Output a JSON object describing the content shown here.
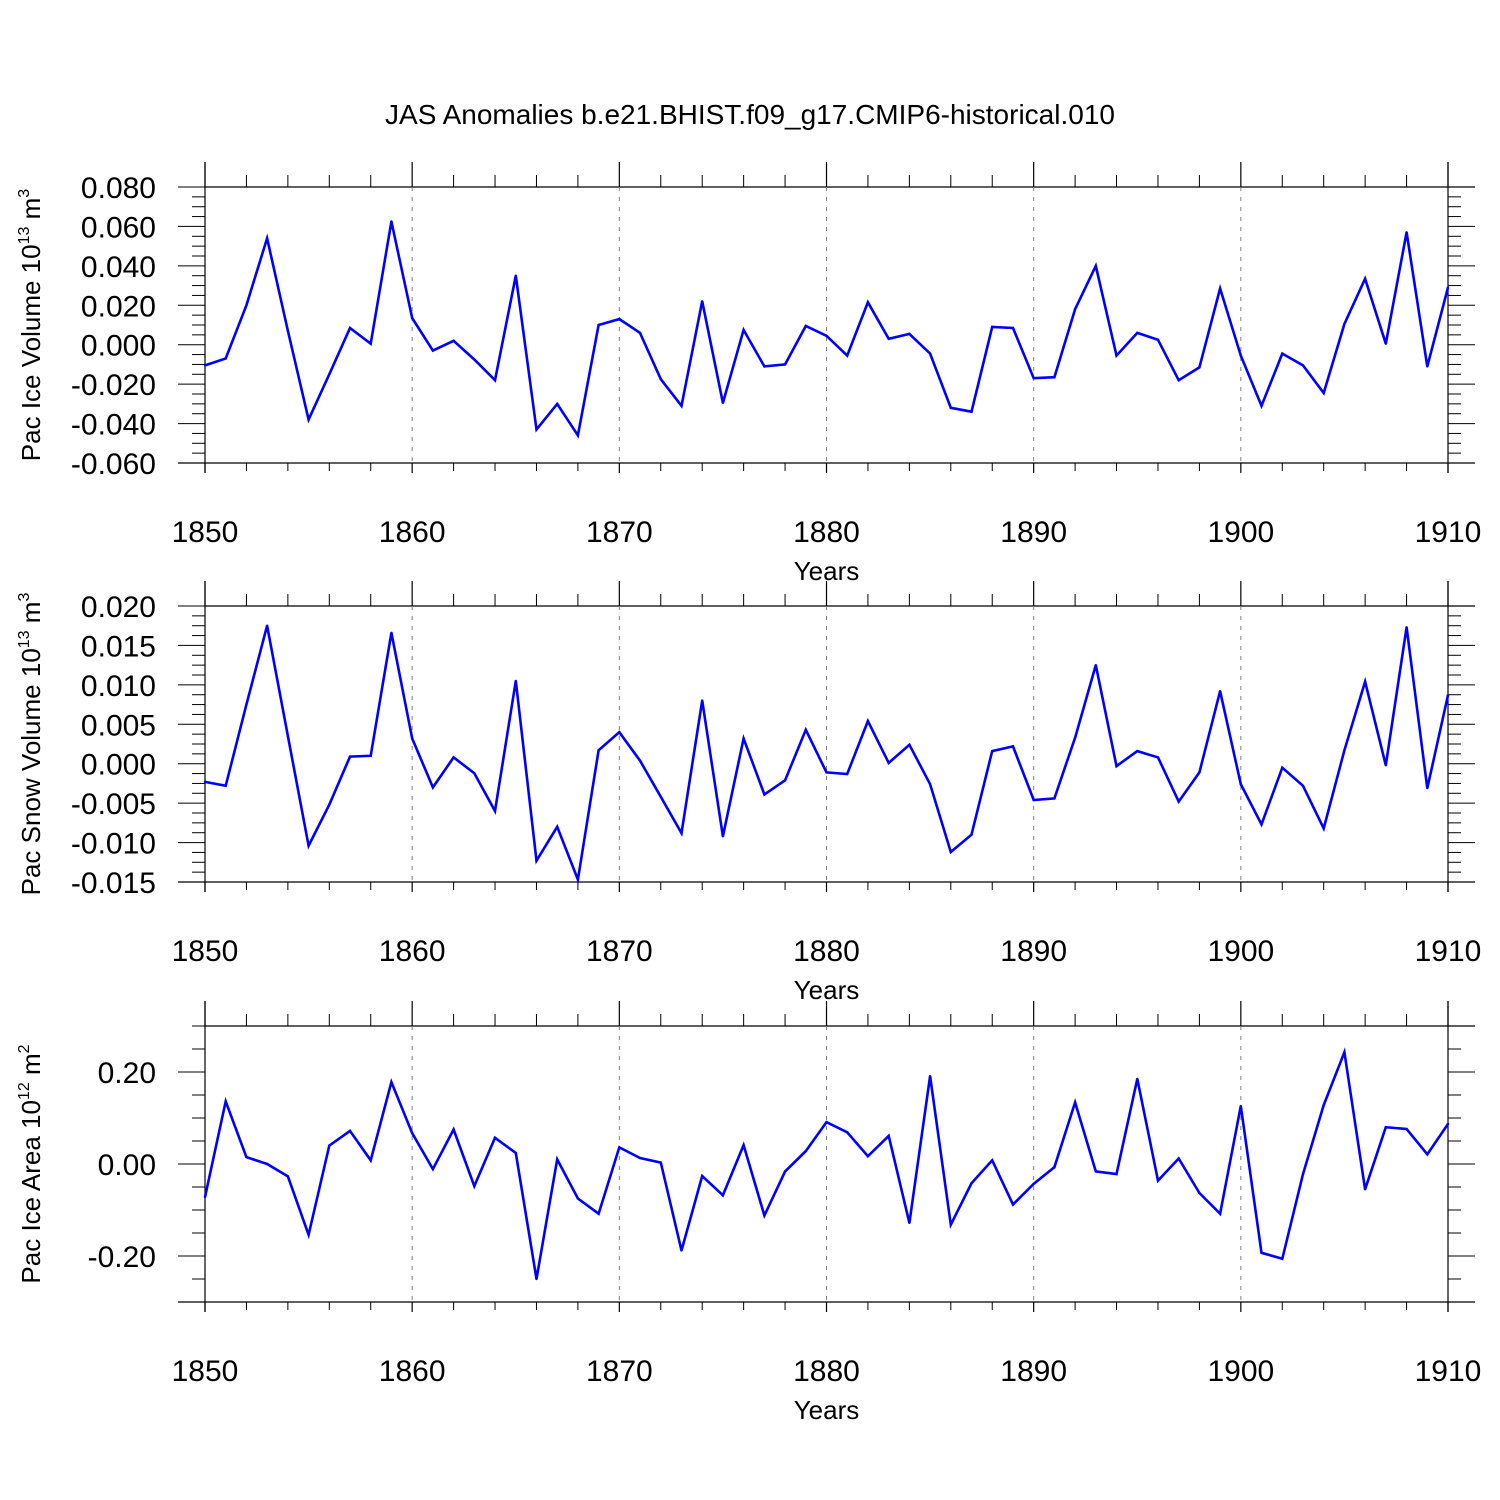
{
  "title": "JAS Anomalies b.e21.BHIST.f09_g17.CMIP6-historical.010",
  "colors": {
    "line": "#0000ff",
    "axis": "#000000",
    "grid": "#808080"
  },
  "chart_data": [
    {
      "type": "line",
      "ylabel": {
        "text": "Pac Ice Volume 10",
        "sup": "13",
        "unit": " m",
        "unit_sup": "3"
      },
      "xlabel": "Years",
      "xlim": [
        1850,
        1910
      ],
      "ylim": [
        -0.06,
        0.08
      ],
      "x_ticks": [
        1850,
        1860,
        1870,
        1880,
        1890,
        1900,
        1910
      ],
      "x_tick_labels": [
        "1850",
        "1860",
        "1870",
        "1880",
        "1890",
        "1900",
        "1910"
      ],
      "y_ticks": [
        -0.06,
        -0.04,
        -0.02,
        0.0,
        0.02,
        0.04,
        0.06,
        0.08
      ],
      "y_tick_labels": [
        "-0.060",
        "-0.040",
        "-0.020",
        "0.000",
        "0.020",
        "0.040",
        "0.060",
        "0.080"
      ],
      "grid": "vertical dashed at decades",
      "x": [
        1850,
        1851,
        1852,
        1853,
        1854,
        1855,
        1856,
        1857,
        1858,
        1859,
        1860,
        1861,
        1862,
        1863,
        1864,
        1865,
        1866,
        1867,
        1868,
        1869,
        1870,
        1871,
        1872,
        1873,
        1874,
        1875,
        1876,
        1877,
        1878,
        1879,
        1880,
        1881,
        1882,
        1883,
        1884,
        1885,
        1886,
        1887,
        1888,
        1889,
        1890,
        1891,
        1892,
        1893,
        1894,
        1895,
        1896,
        1897,
        1898,
        1899,
        1900,
        1901,
        1902,
        1903,
        1904,
        1905,
        1906,
        1907,
        1908,
        1909,
        1910
      ],
      "values": [
        -0.0105,
        -0.007,
        0.02,
        0.054,
        0.007,
        -0.038,
        -0.015,
        0.0085,
        0.0005,
        0.0625,
        0.0135,
        -0.003,
        0.002,
        -0.0075,
        -0.018,
        0.035,
        -0.043,
        -0.03,
        -0.046,
        0.01,
        0.013,
        0.006,
        -0.0175,
        -0.031,
        0.022,
        -0.0295,
        0.0075,
        -0.011,
        -0.01,
        0.0095,
        0.0045,
        -0.0055,
        0.0215,
        0.003,
        0.0055,
        -0.0045,
        -0.032,
        -0.034,
        0.009,
        0.0085,
        -0.017,
        -0.0165,
        0.018,
        0.04,
        -0.0055,
        0.006,
        0.0025,
        -0.018,
        -0.0115,
        0.0285,
        -0.0055,
        -0.031,
        -0.0045,
        -0.0105,
        -0.0245,
        0.0105,
        0.0335,
        0.0005,
        0.057,
        -0.011,
        0.029
      ]
    },
    {
      "type": "line",
      "ylabel": {
        "text": "Pac Snow Volume 10",
        "sup": "13",
        "unit": " m",
        "unit_sup": "3"
      },
      "xlabel": "Years",
      "xlim": [
        1850,
        1910
      ],
      "ylim": [
        -0.015,
        0.02
      ],
      "x_ticks": [
        1850,
        1860,
        1870,
        1880,
        1890,
        1900,
        1910
      ],
      "x_tick_labels": [
        "1850",
        "1860",
        "1870",
        "1880",
        "1890",
        "1900",
        "1910"
      ],
      "y_ticks": [
        -0.015,
        -0.01,
        -0.005,
        0.0,
        0.005,
        0.01,
        0.015,
        0.02
      ],
      "y_tick_labels": [
        "-0.015",
        "-0.010",
        "-0.005",
        "0.000",
        "0.005",
        "0.010",
        "0.015",
        "0.020"
      ],
      "grid": "vertical dashed at decades",
      "x": [
        1850,
        1851,
        1852,
        1853,
        1854,
        1855,
        1856,
        1857,
        1858,
        1859,
        1860,
        1861,
        1862,
        1863,
        1864,
        1865,
        1866,
        1867,
        1868,
        1869,
        1870,
        1871,
        1872,
        1873,
        1874,
        1875,
        1876,
        1877,
        1878,
        1879,
        1880,
        1881,
        1882,
        1883,
        1884,
        1885,
        1886,
        1887,
        1888,
        1889,
        1890,
        1891,
        1892,
        1893,
        1894,
        1895,
        1896,
        1897,
        1898,
        1899,
        1900,
        1901,
        1902,
        1903,
        1904,
        1905,
        1906,
        1907,
        1908,
        1909,
        1910
      ],
      "values": [
        -0.0023,
        -0.0028,
        0.0075,
        0.0175,
        0.0035,
        -0.0104,
        -0.0052,
        0.0009,
        0.001,
        0.0166,
        0.0032,
        -0.003,
        0.0008,
        -0.0012,
        -0.006,
        0.0105,
        -0.0123,
        -0.008,
        -0.0147,
        0.0017,
        0.004,
        0.0004,
        -0.0042,
        -0.0088,
        0.008,
        -0.0092,
        0.0032,
        -0.0039,
        -0.0021,
        0.0043,
        -0.0011,
        -0.0013,
        0.0054,
        0.0001,
        0.0024,
        -0.0026,
        -0.0112,
        -0.009,
        0.0016,
        0.0022,
        -0.0046,
        -0.0044,
        0.0033,
        0.0125,
        -0.0003,
        0.0016,
        0.0008,
        -0.0048,
        -0.0011,
        0.0092,
        -0.0026,
        -0.0077,
        -0.0005,
        -0.0028,
        -0.0082,
        0.0017,
        0.0104,
        -0.0002,
        0.0173,
        -0.0031,
        0.0087
      ]
    },
    {
      "type": "line",
      "ylabel": {
        "text": "Pac Ice Area 10",
        "sup": "12",
        "unit": " m",
        "unit_sup": "2"
      },
      "xlabel": "Years",
      "xlim": [
        1850,
        1910
      ],
      "ylim": [
        -0.3,
        0.3
      ],
      "x_ticks": [
        1850,
        1860,
        1870,
        1880,
        1890,
        1900,
        1910
      ],
      "x_tick_labels": [
        "1850",
        "1860",
        "1870",
        "1880",
        "1890",
        "1900",
        "1910"
      ],
      "y_ticks": [
        -0.2,
        0.0,
        0.2
      ],
      "y_tick_labels": [
        "-0.20",
        "0.00",
        "0.20"
      ],
      "grid": "vertical dashed at decades",
      "x": [
        1850,
        1851,
        1852,
        1853,
        1854,
        1855,
        1856,
        1857,
        1858,
        1859,
        1860,
        1861,
        1862,
        1863,
        1864,
        1865,
        1866,
        1867,
        1868,
        1869,
        1870,
        1871,
        1872,
        1873,
        1874,
        1875,
        1876,
        1877,
        1878,
        1879,
        1880,
        1881,
        1882,
        1883,
        1884,
        1885,
        1886,
        1887,
        1888,
        1889,
        1890,
        1891,
        1892,
        1893,
        1894,
        1895,
        1896,
        1897,
        1898,
        1899,
        1900,
        1901,
        1902,
        1903,
        1904,
        1905,
        1906,
        1907,
        1908,
        1909,
        1910
      ],
      "values": [
        -0.072,
        0.136,
        0.015,
        0.0,
        -0.027,
        -0.154,
        0.04,
        0.072,
        0.008,
        0.178,
        0.067,
        -0.011,
        0.075,
        -0.048,
        0.057,
        0.024,
        -0.25,
        0.01,
        -0.075,
        -0.108,
        0.036,
        0.013,
        0.003,
        -0.188,
        -0.026,
        -0.068,
        0.041,
        -0.112,
        -0.016,
        0.028,
        0.091,
        0.069,
        0.017,
        0.061,
        -0.128,
        0.191,
        -0.132,
        -0.042,
        0.008,
        -0.088,
        -0.043,
        -0.007,
        0.134,
        -0.016,
        -0.022,
        0.185,
        -0.036,
        0.012,
        -0.063,
        -0.108,
        0.126,
        -0.193,
        -0.206,
        -0.022,
        0.128,
        0.243,
        -0.055,
        0.08,
        0.076,
        0.021,
        0.087
      ]
    }
  ]
}
